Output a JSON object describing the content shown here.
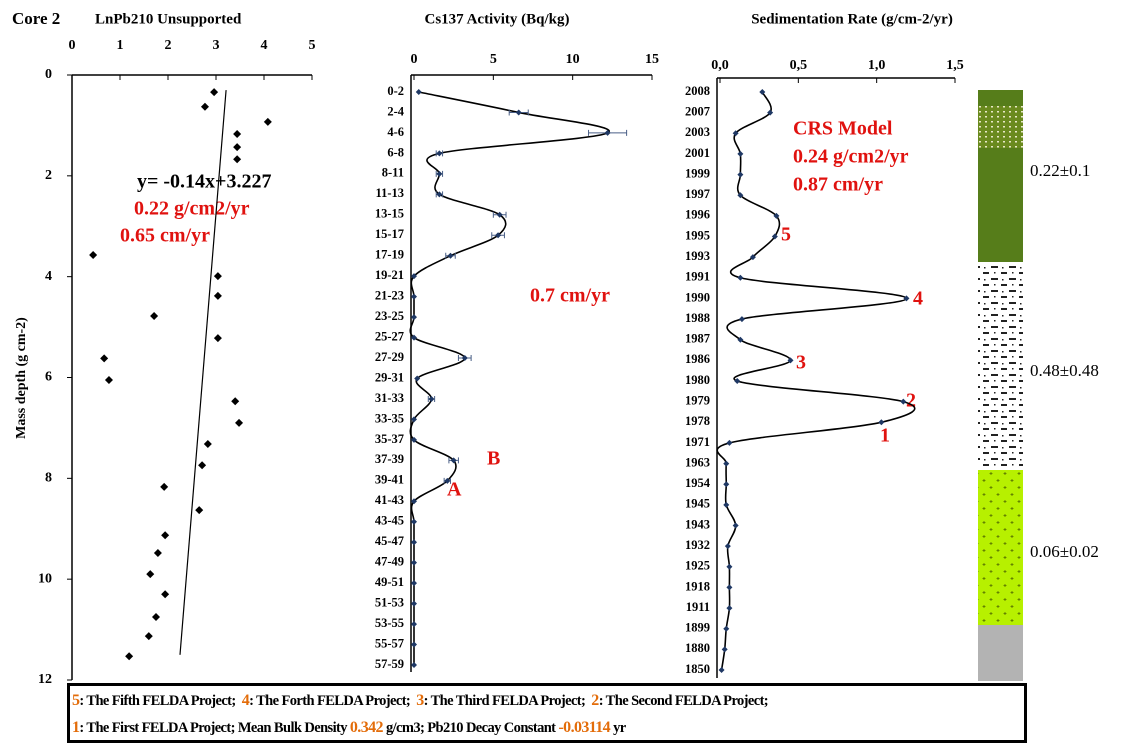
{
  "chart_data": [
    {
      "type": "scatter",
      "title": "LnPb210 Unsupported",
      "ylabel": "Mass depth (g cm-2)",
      "x": [
        2.96,
        2.77,
        4.08,
        3.44,
        3.44,
        3.44,
        0.44,
        3.04,
        3.04,
        1.71,
        3.04,
        0.67,
        0.77,
        3.4,
        3.48,
        2.83,
        2.71,
        1.92,
        2.65,
        1.94,
        1.79,
        1.63,
        1.94,
        1.75,
        1.6,
        1.19
      ],
      "y": [
        0.34,
        0.63,
        0.93,
        1.17,
        1.43,
        1.67,
        3.57,
        3.99,
        4.38,
        4.78,
        5.22,
        5.62,
        6.05,
        6.47,
        6.9,
        7.32,
        7.74,
        8.17,
        8.63,
        9.13,
        9.48,
        9.9,
        10.3,
        10.75,
        11.13,
        11.53
      ],
      "color": "#000000",
      "fit": {
        "x": [
          3.21,
          2.25
        ],
        "y": [
          0.3,
          11.5
        ]
      },
      "xlim": [
        0,
        5
      ],
      "xticks": [
        0,
        1,
        2,
        3,
        4,
        5
      ],
      "ylim": [
        0,
        12
      ],
      "yticks": [
        0,
        2,
        4,
        6,
        8,
        10,
        12
      ],
      "y_inverted": true,
      "annotations": [
        {
          "text": "y= -0.14x+3.227",
          "color": "#000000"
        },
        {
          "text": "0.22 g/cm2/yr",
          "color": "#e0120f"
        },
        {
          "text": "0.65 cm/yr",
          "color": "#e0120f"
        }
      ]
    },
    {
      "type": "line",
      "title": "Cs137 Activity (Bq/kg)",
      "horizontal": true,
      "categories": [
        "0-2",
        "2-4",
        "4-6",
        "6-8",
        "8-11",
        "11-13",
        "13-15",
        "15-17",
        "17-19",
        "19-21",
        "21-23",
        "23-25",
        "25-27",
        "27-29",
        "29-31",
        "31-33",
        "33-35",
        "35-37",
        "37-39",
        "39-41",
        "41-43",
        "43-45",
        "45-47",
        "47-49",
        "49-51",
        "51-53",
        "53-55",
        "55-57",
        "57-59"
      ],
      "values": [
        0.3,
        6.6,
        12.2,
        1.6,
        1.6,
        1.6,
        5.4,
        5.3,
        2.3,
        0,
        0,
        0,
        0,
        3.2,
        0.2,
        1.1,
        0,
        0,
        2.5,
        2.1,
        0,
        0,
        0,
        0,
        0,
        0,
        0,
        0,
        0
      ],
      "errors": [
        null,
        0.6,
        1.2,
        0.2,
        0.2,
        0.2,
        0.4,
        0.4,
        0.3,
        null,
        null,
        null,
        null,
        0.4,
        null,
        0.2,
        null,
        null,
        0.3,
        0.2,
        null,
        null,
        null,
        null,
        null,
        null,
        null,
        null,
        null
      ],
      "color": "#1f3864",
      "xlim": [
        0,
        15
      ],
      "xticks": [
        0,
        5,
        10,
        15
      ],
      "annotations": [
        {
          "text": "0.7 cm/yr",
          "color": "#e0120f"
        },
        {
          "text": "B",
          "color": "#e0120f"
        },
        {
          "text": "A",
          "color": "#e0120f"
        }
      ]
    },
    {
      "type": "line",
      "title": "Sedimentation Rate (g/cm-2/yr)",
      "horizontal": true,
      "categories": [
        "2008",
        "2007",
        "2003",
        "2001",
        "1999",
        "1997",
        "1996",
        "1995",
        "1993",
        "1991",
        "1990",
        "1988",
        "1987",
        "1986",
        "1980",
        "1979",
        "1978",
        "1971",
        "1963",
        "1954",
        "1945",
        "1943",
        "1932",
        "1925",
        "1918",
        "1911",
        "1899",
        "1880",
        "1850"
      ],
      "values": [
        0.27,
        0.32,
        0.1,
        0.13,
        0.13,
        0.13,
        0.36,
        0.35,
        0.21,
        0.13,
        1.19,
        0.14,
        0.13,
        0.45,
        0.11,
        1.17,
        1.03,
        0.06,
        0.04,
        0.04,
        0.04,
        0.1,
        0.05,
        0.06,
        0.06,
        0.06,
        0.04,
        0.03,
        0.01
      ],
      "color": "#1f3864",
      "xlim": [
        0,
        1.5
      ],
      "xticks": [
        {
          "value": 0,
          "label": "0,0"
        },
        {
          "value": 0.5,
          "label": "0,5"
        },
        {
          "value": 1,
          "label": "1,0"
        },
        {
          "value": 1.5,
          "label": "1,5"
        }
      ],
      "annotations": [
        {
          "text": "CRS Model",
          "color": "#e0120f"
        },
        {
          "text": "0.24 g/cm2/yr",
          "color": "#e0120f"
        },
        {
          "text": "0.87 cm/yr",
          "color": "#e0120f"
        },
        {
          "text": "5",
          "color": "#e0120f"
        },
        {
          "text": "4",
          "color": "#e0120f"
        },
        {
          "text": "3",
          "color": "#e0120f"
        },
        {
          "text": "2",
          "color": "#e0120f"
        },
        {
          "text": "1",
          "color": "#e0120f"
        }
      ]
    }
  ],
  "core_label": "Core 2",
  "lithology": {
    "labels": [
      "0.22±0.1",
      "0.48±0.48",
      "0.06±0.02"
    ]
  },
  "footer": {
    "accent_color": "#e36c09",
    "lines": [
      [
        {
          "text": "5",
          "accent": true
        },
        {
          "text": ": The Fifth FELDA Project;  "
        },
        {
          "text": "4",
          "accent": true
        },
        {
          "text": ": The Forth FELDA Project;  "
        },
        {
          "text": "3",
          "accent": true
        },
        {
          "text": ": The Third FELDA Project;  "
        },
        {
          "text": "2",
          "accent": true
        },
        {
          "text": ": The Second FELDA Project;"
        }
      ],
      [
        {
          "text": "1",
          "accent": true
        },
        {
          "text": ": The First FELDA Project; Mean Bulk Density "
        },
        {
          "text": "0.342",
          "accent": true
        },
        {
          "text": " g/cm3; Pb210 Decay Constant "
        },
        {
          "text": "-0.03114",
          "accent": true
        },
        {
          "text": " yr"
        }
      ]
    ]
  }
}
